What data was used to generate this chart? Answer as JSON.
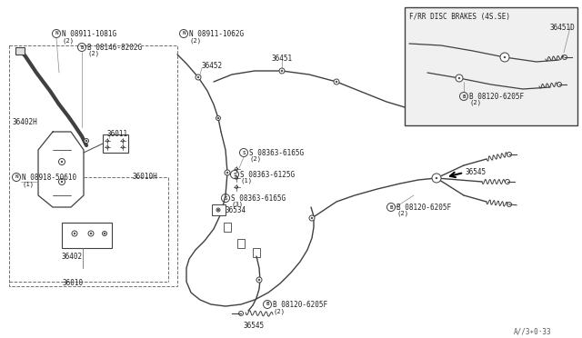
{
  "bg_color": "#ffffff",
  "lc": "#404040",
  "tc": "#202020",
  "fig_w": 6.4,
  "fig_h": 3.72,
  "watermark": "A//3∗0·33",
  "inset_label": "F/RR DISC BRAKES (4S.SE)",
  "inset_part": "36451D",
  "labels": {
    "N_08911_1081G": "N 08911-1081G",
    "B_08146_8202G": "B 08146-8202G",
    "N_08918_50610": "N 08918-50610",
    "N_08911_1062G": "N 08911-1062G",
    "S_08363_6165G_2": "S 08363-6165G",
    "S_08363_6125G": "S 08363-6125G",
    "S_08363_6165G_3": "S 08363-6165G",
    "B_08120_6205F_mid": "B 08120-6205F",
    "B_08120_6205F_bot": "B 08120-6205F",
    "B_08120_6205F_inset": "B 08120-6205F",
    "part_36402H": "36402H",
    "part_36011": "36011",
    "part_36010H": "36010H",
    "part_36402": "36402",
    "part_36010": "36010",
    "part_36452": "36452",
    "part_36451": "36451",
    "part_36534": "36534",
    "part_36545_bot": "36545",
    "part_36545_mid": "36545"
  }
}
